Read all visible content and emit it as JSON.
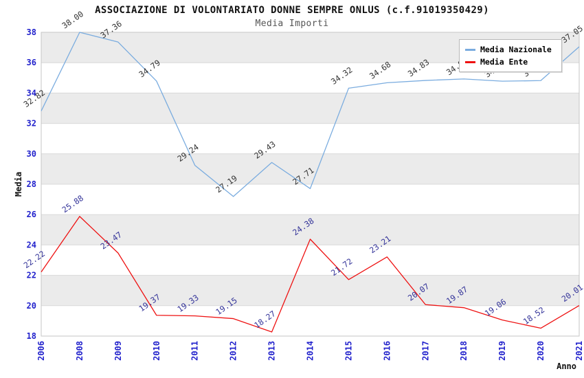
{
  "chart_data": {
    "type": "line",
    "title": "ASSOCIAZIONE DI VOLONTARIATO DONNE SEMPRE ONLUS (c.f.91019350429)",
    "subtitle": "Media Importi",
    "xlabel": "Anno",
    "ylabel": "Media",
    "ylim": [
      18,
      38
    ],
    "ytick_step": 2,
    "ytick_labels": [
      "18",
      "20",
      "22",
      "24",
      "26",
      "28",
      "30",
      "32",
      "34",
      "36",
      "38"
    ],
    "categories": [
      "2006",
      "2008",
      "2009",
      "2010",
      "2011",
      "2012",
      "2013",
      "2014",
      "2015",
      "2016",
      "2017",
      "2018",
      "2019",
      "2020",
      "2021"
    ],
    "series": [
      {
        "name": "Media Nazionale",
        "color": "#7aacdf",
        "label_color": "#333333",
        "values": [
          32.82,
          38.0,
          37.36,
          34.79,
          29.24,
          27.19,
          29.43,
          27.71,
          34.32,
          34.68,
          34.83,
          34.93,
          34.78,
          34.82,
          37.05
        ]
      },
      {
        "name": "Media Ente",
        "color": "#ee1111",
        "label_color": "#333399",
        "values": [
          22.22,
          25.88,
          23.47,
          19.37,
          19.33,
          19.15,
          18.27,
          24.38,
          21.72,
          23.21,
          20.07,
          19.87,
          19.06,
          18.52,
          20.01
        ]
      }
    ],
    "legend_position": "top-right",
    "grid": "horizontal-bands",
    "colors": {
      "band_gray": "#ebebeb",
      "band_white": "#ffffff",
      "gridline": "#d9d9d9",
      "plot_border": "#c6c6c6",
      "tick_label": "#2222cc",
      "axis_title": "#111111"
    }
  }
}
